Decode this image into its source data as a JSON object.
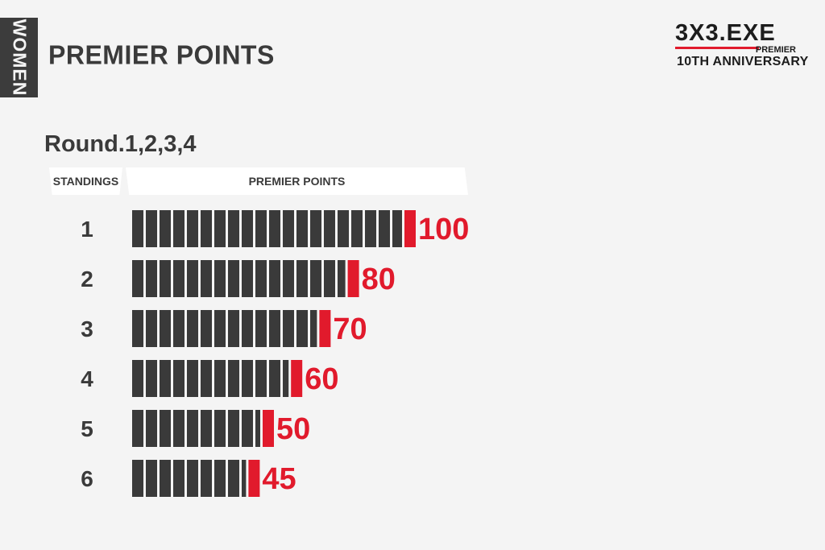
{
  "side_tab": {
    "label": "WOMEN"
  },
  "page_title": "PREMIER POINTS",
  "logo": {
    "mark": "3X3.EXE",
    "premier": "PREMIER",
    "anniversary": "10TH ANNIVERSARY"
  },
  "subtitle": "Round.1,2,3,4",
  "table_header": {
    "standings": "STANDINGS",
    "points": "PREMIER POINTS"
  },
  "colors": {
    "bar_segment": "#3a3a3a",
    "bar_tip": "#e11a2c",
    "value": "#e11a2c"
  },
  "chart_data": {
    "type": "bar",
    "orientation": "horizontal",
    "title": "PREMIER POINTS",
    "subtitle": "Round.1,2,3,4",
    "xlabel": "PREMIER POINTS",
    "ylabel": "STANDINGS",
    "categories": [
      "1",
      "2",
      "3",
      "4",
      "5",
      "6"
    ],
    "values": [
      100,
      80,
      70,
      60,
      50,
      45
    ],
    "value_labels": [
      "100",
      "80",
      "70",
      "60",
      "50",
      "45"
    ],
    "xlim": [
      0,
      100
    ],
    "grid": false,
    "legend": "none"
  }
}
